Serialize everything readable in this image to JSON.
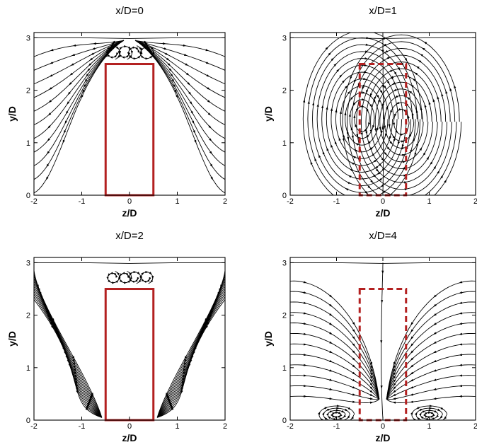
{
  "chart_data": [
    {
      "type": "streamline",
      "title": "x/D=0",
      "xlabel": "z/D",
      "ylabel": "y/D",
      "xlim": [
        -2,
        2
      ],
      "ylim": [
        0,
        3.1
      ],
      "xticks": [
        "-2",
        "-1",
        "0",
        "1",
        "2"
      ],
      "yticks": [
        "0",
        "1",
        "2",
        "3"
      ],
      "body": {
        "z_min": -0.5,
        "z_max": 0.5,
        "y_min": 0,
        "y_max": 2.5,
        "style": "solid"
      },
      "pattern": "outward flow around solid body, small vortices above top",
      "grid": false
    },
    {
      "type": "streamline",
      "title": "x/D=1",
      "xlabel": "z/D",
      "ylabel": "y/D",
      "xlim": [
        -2,
        2
      ],
      "ylim": [
        0,
        3.1
      ],
      "xticks": [
        "-2",
        "-1",
        "0",
        "1",
        "2"
      ],
      "yticks": [
        "0",
        "1",
        "2",
        "3"
      ],
      "body": {
        "z_min": -0.5,
        "z_max": 0.5,
        "y_min": 0,
        "y_max": 2.5,
        "style": "dashed"
      },
      "vortices": [
        {
          "z": -0.45,
          "y": 1.45
        },
        {
          "z": 0.4,
          "y": 1.4
        }
      ],
      "pattern": "counter-rotating vortex pair",
      "grid": false
    },
    {
      "type": "streamline",
      "title": "x/D=2",
      "xlabel": "z/D",
      "ylabel": "y/D",
      "xlim": [
        -2,
        2
      ],
      "ylim": [
        0,
        3.1
      ],
      "xticks": [
        "-2",
        "-1",
        "0",
        "1",
        "2"
      ],
      "yticks": [
        "0",
        "1",
        "2",
        "3"
      ],
      "body": {
        "z_min": -0.5,
        "z_max": 0.5,
        "y_min": 0,
        "y_max": 2.5,
        "style": "solid"
      },
      "pattern": "inward flow converging near floor beside body",
      "grid": false
    },
    {
      "type": "streamline",
      "title": "x/D=4",
      "xlabel": "z/D",
      "ylabel": "y/D",
      "xlim": [
        -2,
        2
      ],
      "ylim": [
        0,
        3.1
      ],
      "xticks": [
        "-2",
        "-1",
        "0",
        "1",
        "2"
      ],
      "yticks": [
        "0",
        "1",
        "2",
        "3"
      ],
      "body": {
        "z_min": -0.5,
        "z_max": 0.5,
        "y_min": 0,
        "y_max": 2.5,
        "style": "dashed"
      },
      "vortices": [
        {
          "z": -1.0,
          "y": 0.1
        },
        {
          "z": 1.0,
          "y": 0.1
        }
      ],
      "pattern": "downwash toward centerline with small near-wall vortices",
      "grid": false
    }
  ]
}
